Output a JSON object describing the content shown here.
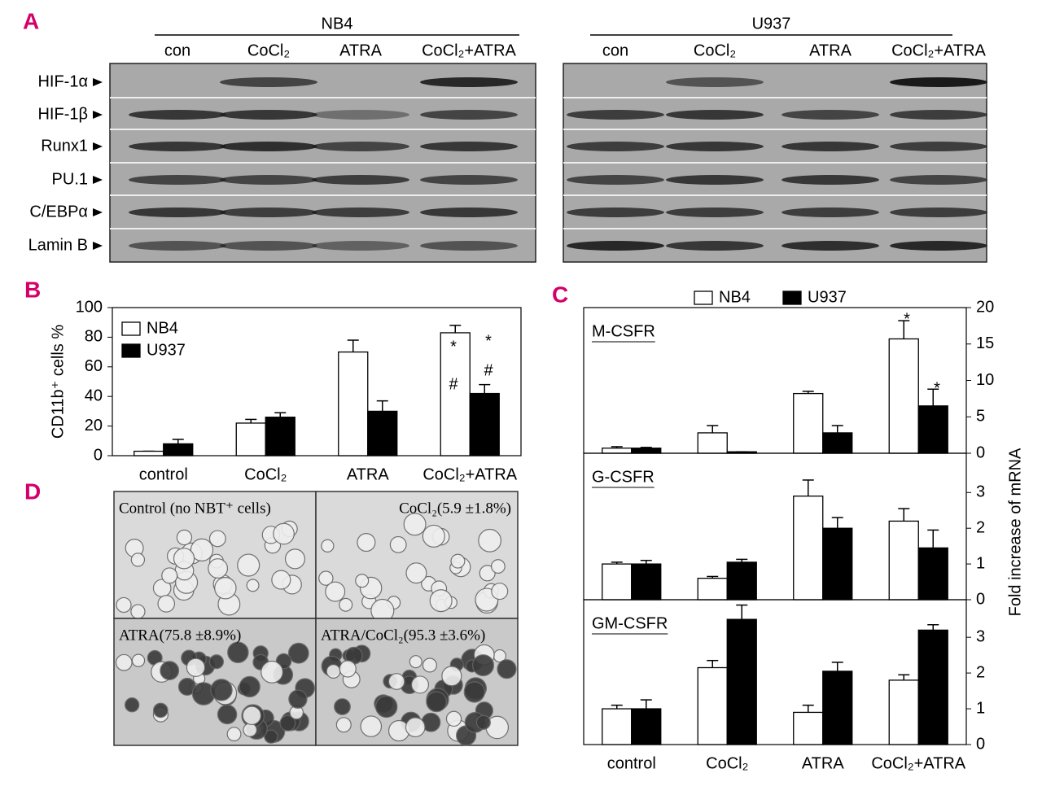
{
  "panels": {
    "A": {
      "letter": "A",
      "groups": [
        {
          "name": "NB4",
          "lanes": [
            "con",
            "CoCl₂",
            "ATRA",
            "CoCl₂+ATRA"
          ]
        },
        {
          "name": "U937",
          "lanes": [
            "con",
            "CoCl₂",
            "ATRA",
            "CoCl₂+ATRA"
          ]
        }
      ],
      "proteins": [
        "HIF-1α",
        "HIF-1β",
        "Runx1",
        "PU.1",
        "C/EBPα",
        "Lamin B"
      ]
    },
    "B": {
      "letter": "B"
    },
    "C": {
      "letter": "C"
    },
    "D": {
      "letter": "D",
      "captions": [
        "Control (no NBT⁺ cells)",
        "CoCl₂(5.9 ±1.8%)",
        "ATRA(75.8 ±8.9%)",
        "ATRA/CoCl₂(95.3 ±3.6%)"
      ]
    }
  },
  "chart_data": [
    {
      "type": "bar",
      "y_label": "CD11b⁺ cells %",
      "categories": [
        "control",
        "CoCl₂",
        "ATRA",
        "CoCl₂+ATRA"
      ],
      "series": [
        {
          "name": "NB4",
          "color": "#ffffff",
          "values": [
            3,
            22,
            70,
            83
          ],
          "errors": [
            0,
            2.5,
            8,
            5
          ]
        },
        {
          "name": "U937",
          "color": "#000000",
          "values": [
            8,
            26,
            30,
            42
          ],
          "errors": [
            3,
            3,
            7,
            6
          ]
        }
      ],
      "ylim": [
        0,
        100
      ],
      "yticks": [
        0,
        20,
        40,
        60,
        80,
        100
      ],
      "legend": "upper left",
      "annotations": [
        "*",
        "#",
        "*",
        "#"
      ]
    },
    {
      "type": "bar",
      "title": "M-CSFR",
      "categories": [
        null,
        null,
        null,
        null
      ],
      "series": [
        {
          "name": "NB4",
          "color": "#ffffff",
          "values": [
            0.7,
            2.8,
            8.2,
            15.7
          ],
          "errors": [
            0.2,
            1,
            0.3,
            2.5
          ]
        },
        {
          "name": "U937",
          "color": "#000000",
          "values": [
            0.7,
            0.2,
            2.8,
            6.5
          ],
          "errors": [
            0.1,
            0,
            1,
            2.3
          ]
        }
      ],
      "ylim": [
        0,
        20
      ],
      "yticks": [
        0,
        5,
        10,
        15,
        20
      ],
      "legend": "top",
      "annotations": [
        "*",
        "*"
      ]
    },
    {
      "type": "bar",
      "title": "G-CSFR",
      "y_label": "Fold increase of mRNA",
      "categories": [
        null,
        null,
        null,
        null
      ],
      "series": [
        {
          "color": "#ffffff",
          "values": [
            1.0,
            0.6,
            2.9,
            2.2
          ],
          "errors": [
            0.05,
            0.05,
            0.45,
            0.35
          ]
        },
        {
          "color": "#000000",
          "values": [
            1.0,
            1.05,
            2.0,
            1.45
          ],
          "errors": [
            0.1,
            0.08,
            0.3,
            0.5
          ]
        }
      ],
      "ylim": [
        0,
        4.1
      ],
      "yticks": [
        0,
        1,
        2,
        3
      ]
    },
    {
      "type": "bar",
      "title": "GM-CSFR",
      "categories": [
        "control",
        "CoCl₂",
        "ATRA",
        "CoCl₂+ATRA"
      ],
      "series": [
        {
          "color": "#ffffff",
          "values": [
            1.0,
            2.15,
            0.9,
            1.8
          ],
          "errors": [
            0.1,
            0.2,
            0.2,
            0.15
          ]
        },
        {
          "color": "#000000",
          "values": [
            1.0,
            3.5,
            2.05,
            3.2
          ],
          "errors": [
            0.25,
            0.4,
            0.25,
            0.15
          ]
        }
      ],
      "ylim": [
        0,
        4.05
      ],
      "yticks": [
        0,
        1,
        2,
        3
      ]
    }
  ]
}
